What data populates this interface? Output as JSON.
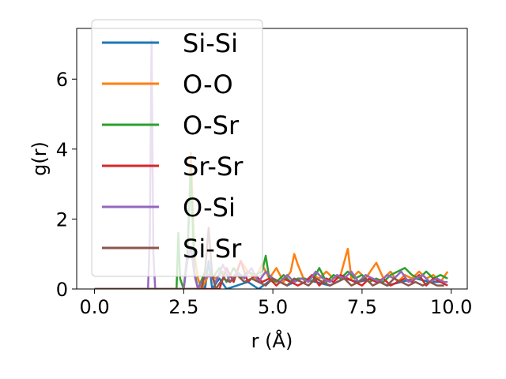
{
  "chart_data": {
    "type": "line",
    "xlabel": "r (Å)",
    "ylabel": "g(r)",
    "xlim": [
      -0.5,
      10.45
    ],
    "ylim": [
      0,
      7.45
    ],
    "xticks": [
      "0.0",
      "2.5",
      "5.0",
      "7.5",
      "10.0"
    ],
    "xtick_values": [
      0,
      2.5,
      5,
      7.5,
      10
    ],
    "yticks": [
      "0",
      "2",
      "4",
      "6"
    ],
    "ytick_values": [
      0,
      2,
      4,
      6
    ],
    "grid": false,
    "legend_position": "upper-left",
    "series": [
      {
        "name": "Si-Si",
        "color": "#1f77b4",
        "x": [
          0,
          1,
          2,
          2.9,
          3.0,
          3.1,
          3.2,
          3.3,
          3.5,
          3.7,
          4.0,
          4.3,
          4.6,
          5.0,
          5.4,
          5.8,
          6.2,
          6.6,
          7.0,
          7.4,
          7.8,
          8.2,
          8.6,
          9.0,
          9.4,
          9.8
        ],
        "y": [
          0,
          0,
          0,
          0,
          0.2,
          0,
          0.8,
          0,
          0.3,
          0,
          0.1,
          0.2,
          0,
          0.3,
          0.1,
          0.3,
          0.2,
          0.1,
          0.3,
          0.2,
          0.3,
          0.1,
          0.2,
          0.3,
          0.2,
          0.2
        ]
      },
      {
        "name": "O-O",
        "color": "#ff7f0e",
        "x": [
          0,
          2.5,
          2.6,
          2.7,
          2.8,
          2.9,
          3.0,
          3.2,
          3.4,
          3.6,
          3.9,
          4.1,
          4.3,
          4.5,
          4.7,
          4.9,
          5.1,
          5.3,
          5.5,
          5.6,
          5.7,
          5.9,
          6.1,
          6.3,
          6.5,
          6.7,
          6.9,
          7.1,
          7.2,
          7.4,
          7.6,
          7.8,
          7.9,
          8.1,
          8.3,
          8.5,
          8.7,
          8.9,
          9.1,
          9.3,
          9.5,
          9.7,
          9.9
        ],
        "y": [
          0,
          0,
          0.8,
          3.9,
          1.0,
          0.3,
          0,
          0.4,
          0.3,
          0.5,
          0.3,
          0.8,
          0.5,
          0.3,
          0.7,
          0.3,
          0.6,
          0.2,
          0.5,
          1.0,
          0.7,
          0.2,
          0.4,
          0.3,
          0.5,
          0.3,
          0.4,
          1.15,
          0.3,
          0.5,
          0.3,
          0.6,
          0.75,
          0.3,
          0.5,
          0.2,
          0.4,
          0.3,
          0.5,
          0.3,
          0.4,
          0.2,
          0.5
        ]
      },
      {
        "name": "O-Sr",
        "color": "#2ca02c",
        "x": [
          0,
          2.3,
          2.35,
          2.4,
          2.5,
          2.6,
          2.7,
          2.8,
          2.9,
          3.1,
          3.3,
          3.5,
          3.7,
          3.9,
          4.1,
          4.3,
          4.5,
          4.7,
          4.8,
          4.9,
          5.1,
          5.3,
          5.5,
          5.7,
          5.9,
          6.1,
          6.3,
          6.5,
          6.7,
          6.9,
          7.1,
          7.3,
          7.5,
          7.7,
          7.9,
          8.1,
          8.3,
          8.5,
          8.7,
          8.9,
          9.1,
          9.3,
          9.5,
          9.7,
          9.9
        ],
        "y": [
          0,
          0,
          1.6,
          0.3,
          0,
          1.0,
          3.3,
          0.5,
          0,
          0.5,
          0.3,
          0.6,
          0.2,
          0.6,
          0.3,
          0.5,
          0.4,
          0.5,
          0.95,
          0.3,
          0.2,
          0.4,
          0.2,
          0.3,
          0.3,
          0.2,
          0.6,
          0.2,
          0.4,
          0.3,
          0.5,
          0.3,
          0.4,
          0.2,
          0.3,
          0.2,
          0.4,
          0.5,
          0.6,
          0.4,
          0.3,
          0.5,
          0.3,
          0.4,
          0.3
        ]
      },
      {
        "name": "Sr-Sr",
        "color": "#d62728",
        "x": [
          0,
          3.5,
          3.7,
          3.9,
          4.1,
          4.3,
          4.5,
          4.7,
          4.9,
          5.1,
          5.3,
          5.5,
          5.7,
          5.9,
          6.1,
          6.3,
          6.5,
          6.7,
          6.9,
          7.1,
          7.3,
          7.5,
          7.7,
          7.9,
          8.1,
          8.3,
          8.5,
          8.7,
          8.9,
          9.1,
          9.3,
          9.5,
          9.7,
          9.9
        ],
        "y": [
          0,
          0,
          0.6,
          0.2,
          0.8,
          0.2,
          0.4,
          0.2,
          0.3,
          0.1,
          0.3,
          0.2,
          0.1,
          0.2,
          0.4,
          0.1,
          0.3,
          0.2,
          0.4,
          0.3,
          0.2,
          0.1,
          0.3,
          0.2,
          0.3,
          0.1,
          0.2,
          0.3,
          0.2,
          0.4,
          0.1,
          0.3,
          0.2,
          0.1
        ]
      },
      {
        "name": "O-Si",
        "color": "#9467bd",
        "x": [
          0,
          1.5,
          1.55,
          1.6,
          1.65,
          1.7,
          1.8,
          2.5,
          2.6,
          2.7,
          2.8,
          2.9,
          3.0,
          3.2,
          3.4,
          3.6,
          3.8,
          4.0,
          4.2,
          4.4,
          4.6,
          4.8,
          5.0,
          5.2,
          5.4,
          5.6,
          5.8,
          6.0,
          6.2,
          6.4,
          6.6,
          6.8,
          7.0,
          7.2,
          7.4,
          7.6,
          7.8,
          8.0,
          8.2,
          8.4,
          8.6,
          8.8,
          9.0,
          9.2,
          9.4,
          9.6,
          9.8,
          9.9
        ],
        "y": [
          0,
          0,
          1.5,
          7.1,
          1.0,
          0,
          0,
          0,
          0.8,
          1.2,
          0.4,
          0,
          0.2,
          0.4,
          0.2,
          0.7,
          0.2,
          0.5,
          0.3,
          0.6,
          0.2,
          0.5,
          0.3,
          0.2,
          0.4,
          0.2,
          0.3,
          0.2,
          0.5,
          0.3,
          0.2,
          0.4,
          0.3,
          0.5,
          0.2,
          0.4,
          0.3,
          0.2,
          0.4,
          0.3,
          0.5,
          0.2,
          0.3,
          0.4,
          0.2,
          0.3,
          0.2,
          0.2
        ]
      },
      {
        "name": "Si-Sr",
        "color": "#8c564b",
        "x": [
          0,
          3.0,
          3.1,
          3.2,
          3.3,
          3.4,
          3.6,
          3.8,
          4.0,
          4.2,
          4.4,
          4.6,
          4.8,
          5.0,
          5.2,
          5.4,
          5.6,
          5.8,
          6.0,
          6.2,
          6.4,
          6.6,
          6.8,
          7.0,
          7.2,
          7.4,
          7.6,
          7.8,
          8.0,
          8.2,
          8.4,
          8.6,
          8.8,
          9.0,
          9.2,
          9.4,
          9.6,
          9.8
        ],
        "y": [
          0,
          0,
          0.5,
          1.75,
          0.4,
          0,
          0.3,
          0.2,
          0.4,
          0.2,
          0.3,
          0.2,
          0.1,
          0.3,
          0.2,
          0.1,
          0.3,
          0.2,
          0.1,
          0.3,
          0.2,
          0.1,
          0.2,
          0.3,
          0.1,
          0.2,
          0.3,
          0.1,
          0.2,
          0.1,
          0.3,
          0.2,
          0.1,
          0.2,
          0.1,
          0.2,
          0.1,
          0.1
        ]
      }
    ]
  }
}
